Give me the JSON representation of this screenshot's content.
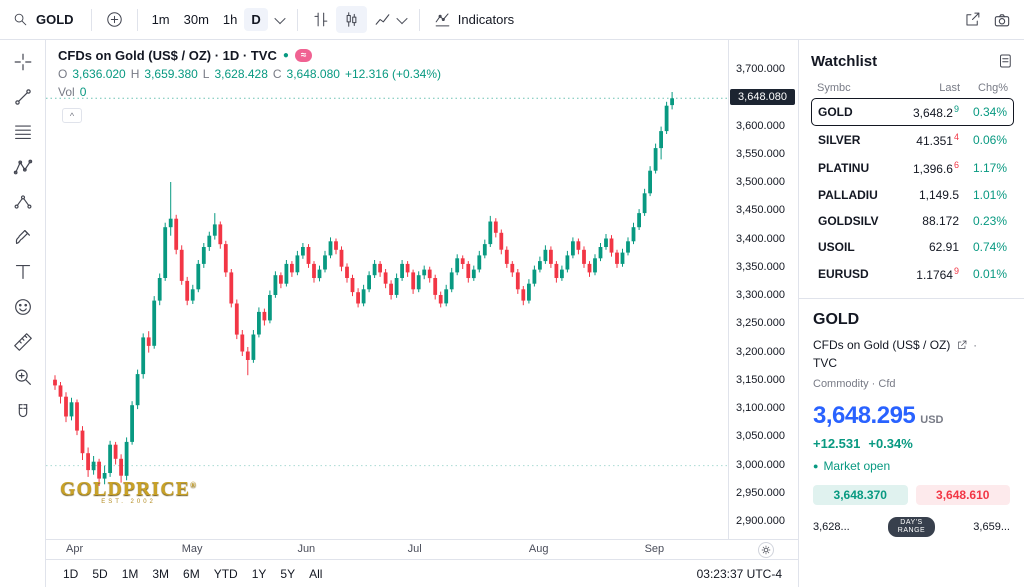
{
  "topbar": {
    "symbol": "GOLD",
    "intervals": [
      "1m",
      "30m",
      "1h",
      "D"
    ],
    "active_interval": "D",
    "indicators_label": "Indicators"
  },
  "chart": {
    "legend": {
      "title": "CFDs on Gold (US$ / OZ) · 1D · TVC",
      "flag_glyph": "≈",
      "status_dot": "●",
      "o_label": "O",
      "o": "3,636.020",
      "h_label": "H",
      "h": "3,659.380",
      "l_label": "L",
      "l": "3,628.428",
      "c_label": "C",
      "c": "3,648.080",
      "change": "+12.316 (+0.34%)",
      "vol_label": "Vol",
      "vol": "0",
      "collapse_glyph": "^"
    },
    "watermark_line1": "GOLDPRICE",
    "watermark_reg": "®",
    "watermark_line2": "EST. 2002",
    "last_price_label": "3,648.080",
    "clock": "03:23:37 UTC-4",
    "range_buttons": [
      "1D",
      "5D",
      "1M",
      "3M",
      "6M",
      "YTD",
      "1Y",
      "5Y",
      "All"
    ]
  },
  "chart_data": {
    "type": "candlestick",
    "title": "CFDs on Gold (US$ / OZ) · 1D · TVC",
    "up_color": "#089981",
    "down_color": "#f23645",
    "last_price": 3648.08,
    "baseline_price": 2998,
    "ylim": [
      2890,
      3710
    ],
    "y_ticks": [
      2900,
      2950,
      3000,
      3050,
      3100,
      3150,
      3200,
      3250,
      3300,
      3350,
      3400,
      3450,
      3500,
      3550,
      3600,
      3650,
      3700
    ],
    "x_labels": [
      "Apr",
      "May",
      "Jun",
      "Jul",
      "Aug",
      "Sep"
    ],
    "x_label_indices": [
      2,
      23,
      44,
      64,
      86,
      107
    ],
    "candles": [
      [
        3150,
        3158,
        3132,
        3140
      ],
      [
        3140,
        3146,
        3108,
        3120
      ],
      [
        3120,
        3128,
        3075,
        3085
      ],
      [
        3085,
        3118,
        3078,
        3110
      ],
      [
        3110,
        3115,
        3052,
        3060
      ],
      [
        3060,
        3068,
        3008,
        3020
      ],
      [
        3020,
        3030,
        2978,
        2990
      ],
      [
        2990,
        3015,
        2982,
        3005
      ],
      [
        3005,
        3010,
        2962,
        2975
      ],
      [
        2975,
        2998,
        2965,
        2985
      ],
      [
        2985,
        3042,
        2978,
        3035
      ],
      [
        3035,
        3040,
        3000,
        3010
      ],
      [
        3010,
        3018,
        2968,
        2980
      ],
      [
        2980,
        3048,
        2972,
        3040
      ],
      [
        3040,
        3112,
        3035,
        3105
      ],
      [
        3105,
        3168,
        3098,
        3160
      ],
      [
        3160,
        3232,
        3152,
        3225
      ],
      [
        3225,
        3236,
        3198,
        3210
      ],
      [
        3210,
        3298,
        3205,
        3290
      ],
      [
        3290,
        3338,
        3282,
        3330
      ],
      [
        3330,
        3428,
        3325,
        3420
      ],
      [
        3420,
        3500,
        3405,
        3435
      ],
      [
        3435,
        3442,
        3372,
        3380
      ],
      [
        3380,
        3388,
        3318,
        3325
      ],
      [
        3325,
        3332,
        3282,
        3290
      ],
      [
        3290,
        3318,
        3284,
        3310
      ],
      [
        3310,
        3362,
        3305,
        3355
      ],
      [
        3355,
        3392,
        3348,
        3385
      ],
      [
        3385,
        3412,
        3378,
        3405
      ],
      [
        3405,
        3445,
        3398,
        3425
      ],
      [
        3425,
        3430,
        3382,
        3390
      ],
      [
        3390,
        3396,
        3332,
        3340
      ],
      [
        3340,
        3346,
        3278,
        3285
      ],
      [
        3285,
        3292,
        3222,
        3230
      ],
      [
        3230,
        3238,
        3192,
        3200
      ],
      [
        3200,
        3208,
        3158,
        3185
      ],
      [
        3185,
        3238,
        3180,
        3230
      ],
      [
        3230,
        3278,
        3225,
        3270
      ],
      [
        3270,
        3276,
        3246,
        3255
      ],
      [
        3255,
        3308,
        3250,
        3300
      ],
      [
        3300,
        3342,
        3295,
        3335
      ],
      [
        3335,
        3340,
        3312,
        3320
      ],
      [
        3320,
        3362,
        3315,
        3355
      ],
      [
        3355,
        3360,
        3332,
        3340
      ],
      [
        3340,
        3378,
        3335,
        3370
      ],
      [
        3370,
        3392,
        3364,
        3385
      ],
      [
        3385,
        3390,
        3348,
        3355
      ],
      [
        3355,
        3360,
        3322,
        3330
      ],
      [
        3330,
        3352,
        3324,
        3345
      ],
      [
        3345,
        3378,
        3340,
        3370
      ],
      [
        3370,
        3402,
        3365,
        3395
      ],
      [
        3395,
        3400,
        3372,
        3380
      ],
      [
        3380,
        3386,
        3342,
        3350
      ],
      [
        3350,
        3356,
        3322,
        3330
      ],
      [
        3330,
        3336,
        3298,
        3305
      ],
      [
        3305,
        3312,
        3278,
        3285
      ],
      [
        3285,
        3318,
        3280,
        3310
      ],
      [
        3310,
        3342,
        3305,
        3335
      ],
      [
        3335,
        3362,
        3330,
        3355
      ],
      [
        3355,
        3360,
        3332,
        3340
      ],
      [
        3340,
        3346,
        3312,
        3320
      ],
      [
        3320,
        3326,
        3292,
        3300
      ],
      [
        3300,
        3338,
        3295,
        3330
      ],
      [
        3330,
        3362,
        3325,
        3355
      ],
      [
        3355,
        3360,
        3332,
        3340
      ],
      [
        3340,
        3345,
        3302,
        3310
      ],
      [
        3310,
        3342,
        3305,
        3335
      ],
      [
        3335,
        3352,
        3328,
        3345
      ],
      [
        3345,
        3350,
        3322,
        3330
      ],
      [
        3330,
        3336,
        3292,
        3300
      ],
      [
        3300,
        3306,
        3278,
        3285
      ],
      [
        3285,
        3318,
        3280,
        3310
      ],
      [
        3310,
        3348,
        3305,
        3340
      ],
      [
        3340,
        3372,
        3335,
        3365
      ],
      [
        3365,
        3370,
        3346,
        3355
      ],
      [
        3355,
        3360,
        3322,
        3330
      ],
      [
        3330,
        3352,
        3325,
        3345
      ],
      [
        3345,
        3378,
        3340,
        3370
      ],
      [
        3370,
        3398,
        3365,
        3390
      ],
      [
        3390,
        3440,
        3385,
        3430
      ],
      [
        3430,
        3436,
        3402,
        3410
      ],
      [
        3410,
        3416,
        3372,
        3380
      ],
      [
        3380,
        3386,
        3348,
        3355
      ],
      [
        3355,
        3360,
        3332,
        3340
      ],
      [
        3340,
        3346,
        3302,
        3310
      ],
      [
        3310,
        3316,
        3282,
        3290
      ],
      [
        3290,
        3328,
        3285,
        3320
      ],
      [
        3320,
        3352,
        3315,
        3345
      ],
      [
        3345,
        3368,
        3340,
        3360
      ],
      [
        3360,
        3388,
        3355,
        3380
      ],
      [
        3380,
        3386,
        3348,
        3355
      ],
      [
        3355,
        3360,
        3322,
        3330
      ],
      [
        3330,
        3352,
        3325,
        3345
      ],
      [
        3345,
        3378,
        3340,
        3370
      ],
      [
        3370,
        3402,
        3365,
        3395
      ],
      [
        3395,
        3400,
        3372,
        3380
      ],
      [
        3380,
        3386,
        3348,
        3355
      ],
      [
        3355,
        3360,
        3332,
        3340
      ],
      [
        3340,
        3372,
        3335,
        3365
      ],
      [
        3365,
        3392,
        3360,
        3385
      ],
      [
        3385,
        3408,
        3380,
        3400
      ],
      [
        3400,
        3406,
        3368,
        3375
      ],
      [
        3375,
        3380,
        3348,
        3355
      ],
      [
        3355,
        3382,
        3350,
        3375
      ],
      [
        3375,
        3402,
        3370,
        3395
      ],
      [
        3395,
        3428,
        3390,
        3420
      ],
      [
        3420,
        3452,
        3415,
        3445
      ],
      [
        3445,
        3488,
        3440,
        3480
      ],
      [
        3480,
        3528,
        3475,
        3520
      ],
      [
        3520,
        3568,
        3515,
        3560
      ],
      [
        3560,
        3598,
        3540,
        3590
      ],
      [
        3590,
        3642,
        3585,
        3635
      ],
      [
        3636.02,
        3659.38,
        3628.43,
        3648.08
      ]
    ]
  },
  "watchlist": {
    "title": "Watchlist",
    "columns": [
      "Symbc",
      "Last",
      "Chg%"
    ],
    "rows": [
      {
        "symbol": "GOLD",
        "last": "3,648.2",
        "sup": "9",
        "sup_dir": "up",
        "chg": "0.34%",
        "selected": true
      },
      {
        "symbol": "SILVER",
        "last": "41.351",
        "sup": "4",
        "sup_dir": "down",
        "chg": "0.06%",
        "selected": false
      },
      {
        "symbol": "PLATINU",
        "last": "1,396.6",
        "sup": "6",
        "sup_dir": "down",
        "chg": "1.17%",
        "selected": false
      },
      {
        "symbol": "PALLADIU",
        "last": "1,149.5",
        "sup": "",
        "sup_dir": "up",
        "chg": "1.01%",
        "selected": false
      },
      {
        "symbol": "GOLDSILV",
        "last": "88.172",
        "sup": "",
        "sup_dir": "up",
        "chg": "0.23%",
        "selected": false
      },
      {
        "symbol": "USOIL",
        "last": "62.91",
        "sup": "",
        "sup_dir": "up",
        "chg": "0.74%",
        "selected": false
      },
      {
        "symbol": "EURUSD",
        "last": "1.1764",
        "sup": "9",
        "sup_dir": "down",
        "chg": "0.01%",
        "selected": false
      }
    ]
  },
  "detail": {
    "symbol": "GOLD",
    "description": "CFDs on Gold (US$ / OZ)",
    "separator": "·",
    "exchange": "TVC",
    "meta": "Commodity · Cfd",
    "price": "3,648.295",
    "currency": "USD",
    "change": "+12.531",
    "change_pct": "+0.34%",
    "status_dot": "●",
    "market_status": "Market open",
    "bid": "3,648.370",
    "ask": "3,648.610",
    "range_low": "3,628...",
    "range_label_line1": "DAY'S",
    "range_label_line2": "RANGE",
    "range_high": "3,659..."
  }
}
